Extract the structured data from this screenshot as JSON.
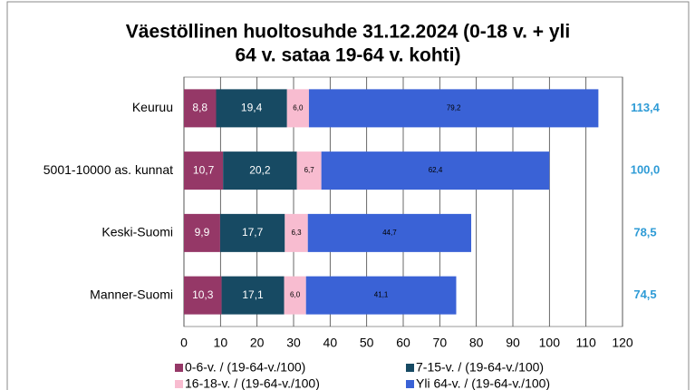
{
  "chart_data": {
    "type": "stacked-bar-horizontal",
    "title": "Väestöllinen huoltosuhde 31.12.2024 (0-18 v. + yli 64 v. sataa 19-64 v. kohti)",
    "title_lines": [
      "Väestöllinen huoltosuhde 31.12.2024 (0-18 v. + yli",
      "64 v. sataa 19-64 v. kohti)"
    ],
    "categories": [
      "Keuruu",
      "5001-10000 as. kunnat",
      "Keski-Suomi",
      "Manner-Suomi"
    ],
    "series": [
      {
        "name": "0-6-v. / (19-64-v./100)",
        "color": "#953867",
        "values": [
          8.8,
          10.7,
          9.9,
          10.3
        ],
        "value_labels": [
          "8,8",
          "10,7",
          "9,9",
          "10,3"
        ]
      },
      {
        "name": "7-15-v. / (19-64-v./100)",
        "color": "#174a63",
        "values": [
          19.4,
          20.2,
          17.7,
          17.1
        ],
        "value_labels": [
          "19,4",
          "20,2",
          "17,7",
          "17,1"
        ]
      },
      {
        "name": "16-18-v. / (19-64-v./100)",
        "color": "#f8bcd0",
        "values": [
          6.0,
          6.7,
          6.3,
          6.0
        ],
        "value_labels": [
          "6,0",
          "6,7",
          "6,3",
          "6,0"
        ]
      },
      {
        "name": "Yli 64-v. / (19-64-v./100)",
        "color": "#3a62d6",
        "values": [
          79.2,
          62.4,
          44.7,
          41.1
        ],
        "value_labels": [
          "79,2",
          "62,4",
          "44,7",
          "41,1"
        ]
      }
    ],
    "totals": {
      "color": "#2e9bd6",
      "values": [
        113.4,
        100.0,
        78.5,
        74.5
      ],
      "value_labels": [
        "113,4",
        "100,0",
        "78,5",
        "74,5"
      ]
    },
    "xlim": [
      0,
      120
    ],
    "xticks": [
      0,
      10,
      20,
      30,
      40,
      50,
      60,
      70,
      80,
      90,
      100,
      110,
      120
    ],
    "grid": true
  }
}
